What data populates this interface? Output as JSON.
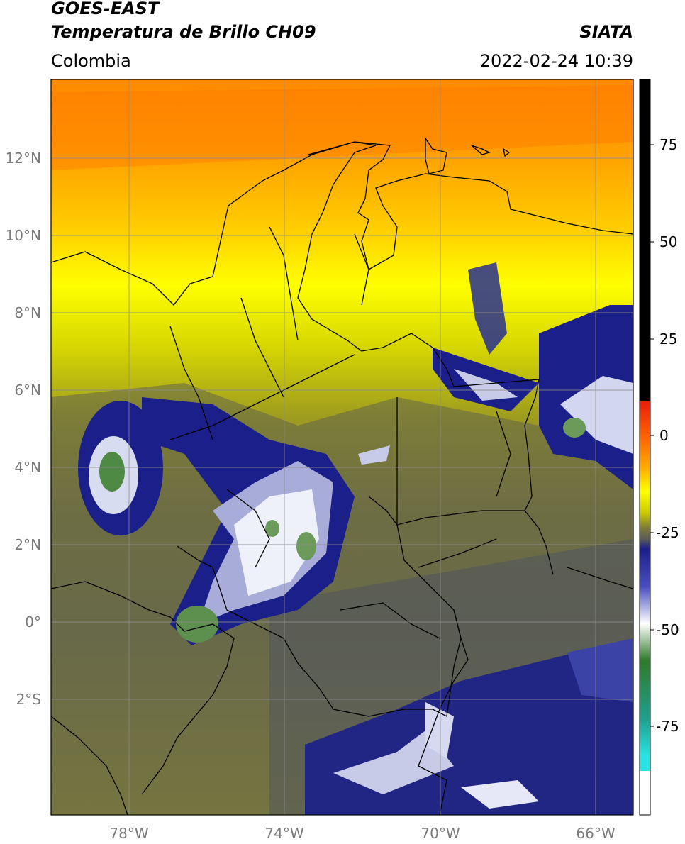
{
  "header": {
    "title_line1": "GOES-EAST",
    "title_line2": "Temperatura de Brillo CH09",
    "region": "Colombia",
    "agency": "SIATA",
    "datetime": "2022-02-24 10:39"
  },
  "map": {
    "lat_ticks": [
      "12°N",
      "10°N",
      "8°N",
      "6°N",
      "4°N",
      "2°N",
      "0°",
      "2°S"
    ],
    "lon_ticks": [
      "78°W",
      "74°W",
      "70°W",
      "66°W"
    ]
  },
  "colorbar": {
    "ticks": [
      "75",
      "50",
      "25",
      "0",
      "-25",
      "-50",
      "-75"
    ],
    "colors": {
      "black": "#000000",
      "red": "#e81d0a",
      "orange": "#ff8a00",
      "yellow": "#ffff00",
      "olive": "#7c7a3a",
      "gray": "#5a5c55",
      "navy": "#1b1f8a",
      "white": "#ffffff",
      "green": "#2f7a2a",
      "teal": "#1fa08f",
      "cyan": "#29e3e3"
    }
  }
}
